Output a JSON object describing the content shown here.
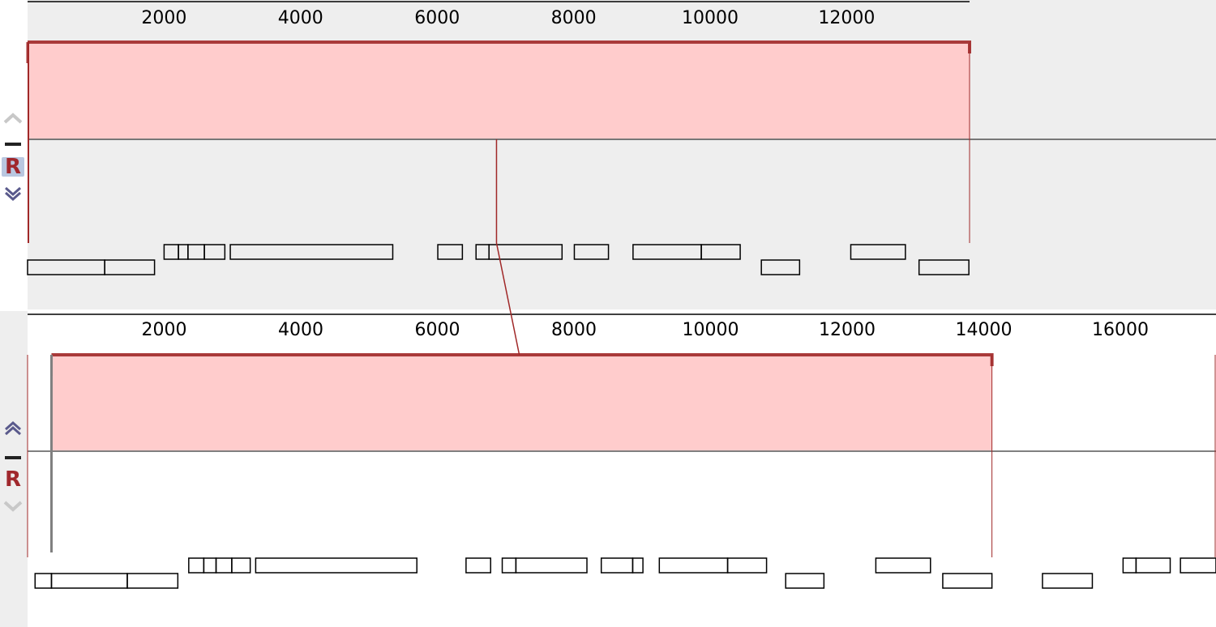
{
  "colors": {
    "block_fill": "#ffcccc",
    "block_stroke": "#a93a3a",
    "connector": "#a02828",
    "bg_top": "#eeeeee",
    "bg_bottom": "#ffffff",
    "ctrl_bg": "#f5f5f5",
    "r_button": "#a0282d",
    "gap_marker": "#808080"
  },
  "genomes": [
    {
      "name": "top",
      "background": "#eeeeee",
      "ticks": [
        2000,
        4000,
        6000,
        8000,
        10000,
        12000
      ],
      "axis": {
        "start": 0,
        "end": 13800
      },
      "block": {
        "start": 0,
        "end": 13800
      },
      "controls": {
        "up_arrow": "chevron-up-icon",
        "minus": "minus-icon",
        "r_label": "R",
        "r_selected": true,
        "down_arrow": "chevron-down-icon"
      },
      "features_upper": [
        [
          2000,
          2210
        ],
        [
          2210,
          2350
        ],
        [
          2350,
          2590
        ],
        [
          2590,
          2890
        ],
        [
          2970,
          5350
        ],
        [
          6010,
          6370
        ],
        [
          6570,
          6760
        ],
        [
          6760,
          7830
        ],
        [
          8010,
          8510
        ],
        [
          8870,
          9870
        ],
        [
          9870,
          10440
        ],
        [
          12060,
          12860
        ]
      ],
      "features_lower": [
        [
          0,
          1130
        ],
        [
          1130,
          1860
        ],
        [
          10750,
          11310
        ],
        [
          13060,
          13790
        ]
      ]
    },
    {
      "name": "bottom",
      "background": "#ffffff",
      "ticks": [
        2000,
        4000,
        6000,
        8000,
        10000,
        12000,
        14000,
        16000
      ],
      "axis": {
        "start": 0,
        "end": 17400
      },
      "block": {
        "start": 350,
        "end": 14120
      },
      "controls": {
        "up_arrow": "chevron-up-icon",
        "minus": "minus-icon",
        "r_label": "R",
        "r_selected": false,
        "down_arrow": "chevron-down-icon"
      },
      "features_upper": [
        [
          2360,
          2580
        ],
        [
          2580,
          2760
        ],
        [
          2760,
          2990
        ],
        [
          2990,
          3260
        ],
        [
          3340,
          5700
        ],
        [
          6420,
          6780
        ],
        [
          6950,
          7150
        ],
        [
          7150,
          8190
        ],
        [
          8400,
          8860
        ],
        [
          8860,
          9010
        ],
        [
          9250,
          10250
        ],
        [
          10250,
          10820
        ],
        [
          12420,
          13220
        ],
        [
          16040,
          16230
        ],
        [
          16230,
          16730
        ],
        [
          16880,
          17400
        ]
      ],
      "features_lower": [
        [
          110,
          350
        ],
        [
          350,
          1460
        ],
        [
          1460,
          2200
        ],
        [
          11100,
          11660
        ],
        [
          13400,
          14120
        ],
        [
          14860,
          15590
        ]
      ]
    }
  ],
  "connector": {
    "top_pos": 6870,
    "bottom_pos": 7200
  }
}
